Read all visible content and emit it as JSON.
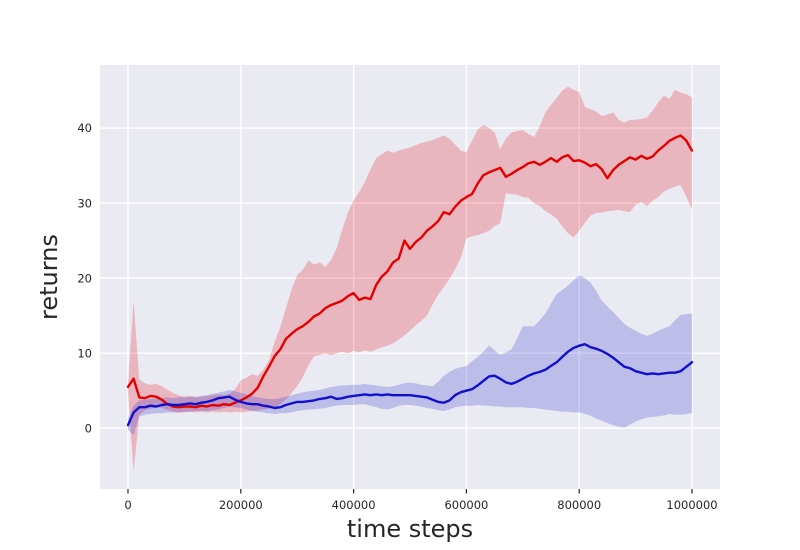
{
  "figure": {
    "background": "#ffffff"
  },
  "axes": {
    "xlabel": "time steps",
    "ylabel": "returns",
    "x_ticks": [
      0,
      200000,
      400000,
      600000,
      800000,
      1000000
    ],
    "x_tick_labels": [
      "0",
      "200000",
      "400000",
      "600000",
      "800000",
      "1000000"
    ],
    "y_ticks": [
      0,
      10,
      20,
      30,
      40
    ],
    "y_tick_labels": [
      "0",
      "10",
      "20",
      "30",
      "40"
    ],
    "xlim": [
      -49600,
      1049600
    ],
    "ylim": [
      -8.1,
      48.4
    ],
    "plot_background": "#eaeaf2",
    "grid_color": "#ffffff",
    "text_color": "#262626",
    "grid": "on",
    "legend": "none"
  },
  "chart_data": {
    "type": "line",
    "title": "",
    "xlabel": "time steps",
    "ylabel": "returns",
    "x": [
      0,
      10000,
      20000,
      30000,
      40000,
      50000,
      60000,
      70000,
      80000,
      90000,
      100000,
      110000,
      120000,
      130000,
      140000,
      150000,
      160000,
      170000,
      180000,
      190000,
      200000,
      210000,
      220000,
      230000,
      240000,
      250000,
      260000,
      270000,
      280000,
      290000,
      300000,
      310000,
      320000,
      330000,
      340000,
      350000,
      360000,
      370000,
      380000,
      390000,
      400000,
      410000,
      420000,
      430000,
      440000,
      450000,
      460000,
      470000,
      480000,
      490000,
      500000,
      510000,
      520000,
      530000,
      540000,
      550000,
      560000,
      570000,
      580000,
      590000,
      600000,
      610000,
      620000,
      630000,
      640000,
      650000,
      660000,
      670000,
      680000,
      690000,
      700000,
      710000,
      720000,
      730000,
      740000,
      750000,
      760000,
      770000,
      780000,
      790000,
      800000,
      810000,
      820000,
      830000,
      840000,
      850000,
      860000,
      870000,
      880000,
      890000,
      900000,
      910000,
      920000,
      930000,
      940000,
      950000,
      960000,
      970000,
      980000,
      990000,
      1000000
    ],
    "series": [
      {
        "name": "red",
        "color": "#e50000",
        "band_color": "rgba(232,0,15,0.22)",
        "values": [
          5.5,
          6.6,
          4.1,
          4.0,
          4.3,
          4.2,
          3.8,
          3.2,
          2.9,
          2.8,
          2.9,
          2.9,
          2.8,
          3.0,
          2.9,
          3.1,
          3.0,
          3.2,
          3.1,
          3.4,
          3.7,
          4.1,
          4.6,
          5.4,
          6.9,
          8.2,
          9.6,
          10.5,
          11.9,
          12.6,
          13.2,
          13.6,
          14.2,
          14.9,
          15.3,
          16.0,
          16.4,
          16.7,
          17.0,
          17.6,
          18.0,
          17.1,
          17.4,
          17.2,
          19.1,
          20.2,
          20.9,
          22.1,
          22.6,
          25.0,
          23.9,
          24.8,
          25.4,
          26.3,
          26.9,
          27.6,
          28.8,
          28.5,
          29.5,
          30.3,
          30.8,
          31.2,
          32.6,
          33.7,
          34.1,
          34.4,
          34.7,
          33.5,
          33.9,
          34.4,
          34.8,
          35.3,
          35.5,
          35.1,
          35.5,
          36.0,
          35.5,
          36.1,
          36.4,
          35.6,
          35.7,
          35.4,
          34.9,
          35.2,
          34.5,
          33.3,
          34.4,
          35.1,
          35.6,
          36.1,
          35.8,
          36.3,
          35.9,
          36.2,
          37.0,
          37.6,
          38.3,
          38.7,
          39.0,
          38.3,
          37.0
        ],
        "band_upper": [
          6.0,
          17.0,
          6.5,
          6.0,
          5.8,
          5.9,
          5.6,
          5.1,
          4.7,
          4.4,
          4.2,
          4.3,
          4.1,
          4.2,
          4.3,
          4.4,
          4.5,
          4.4,
          4.6,
          5.2,
          6.4,
          6.7,
          7.2,
          7.0,
          7.8,
          9.1,
          11.5,
          13.5,
          16.0,
          18.5,
          20.4,
          21.1,
          22.4,
          21.8,
          22.1,
          21.5,
          22.4,
          24.0,
          26.5,
          28.8,
          30.4,
          31.5,
          32.8,
          34.5,
          36.0,
          36.5,
          37.0,
          36.7,
          37.0,
          37.2,
          37.4,
          37.7,
          38.0,
          38.2,
          38.4,
          38.7,
          39.0,
          38.6,
          37.8,
          37.0,
          36.8,
          38.3,
          39.8,
          40.4,
          40.0,
          39.4,
          37.2,
          38.6,
          39.4,
          39.6,
          39.7,
          39.2,
          38.8,
          40.2,
          42.1,
          43.1,
          44.0,
          45.0,
          45.5,
          45.1,
          44.8,
          42.8,
          42.5,
          42.2,
          41.6,
          41.8,
          42.1,
          41.1,
          40.7,
          41.1,
          41.1,
          41.2,
          41.4,
          42.3,
          43.4,
          44.3,
          43.9,
          45.1,
          44.7,
          44.5,
          44.1
        ],
        "band_lower": [
          4.8,
          -5.8,
          1.8,
          2.4,
          2.6,
          2.8,
          2.7,
          2.4,
          2.2,
          2.1,
          2.1,
          2.2,
          2.1,
          2.2,
          2.1,
          2.2,
          2.1,
          2.2,
          2.1,
          2.2,
          2.1,
          2.2,
          2.3,
          2.4,
          2.5,
          2.6,
          2.8,
          3.2,
          3.8,
          4.7,
          5.6,
          6.8,
          8.4,
          9.6,
          9.8,
          10.0,
          9.7,
          10.0,
          10.2,
          10.0,
          10.3,
          10.1,
          10.4,
          10.2,
          10.5,
          10.8,
          11.0,
          11.3,
          11.8,
          12.4,
          13.0,
          13.7,
          14.3,
          15.0,
          16.5,
          17.8,
          18.8,
          19.9,
          21.2,
          22.7,
          25.3,
          25.6,
          25.7,
          26.0,
          26.3,
          26.9,
          27.3,
          31.3,
          31.2,
          31.1,
          30.8,
          30.7,
          30.0,
          29.6,
          28.9,
          28.5,
          27.9,
          26.9,
          26.0,
          25.4,
          26.3,
          27.4,
          28.3,
          28.7,
          28.7,
          28.9,
          29.0,
          29.1,
          28.9,
          28.8,
          29.8,
          30.1,
          29.6,
          30.3,
          30.8,
          31.5,
          31.9,
          32.2,
          32.4,
          30.8,
          29.1
        ]
      },
      {
        "name": "blue",
        "color": "#1111cd",
        "band_color": "rgba(25,25,205,0.21)",
        "values": [
          0.4,
          2.1,
          2.8,
          2.8,
          3.0,
          2.9,
          3.1,
          3.2,
          3.1,
          3.1,
          3.2,
          3.3,
          3.2,
          3.4,
          3.5,
          3.7,
          4.0,
          4.1,
          4.2,
          3.8,
          3.5,
          3.3,
          3.2,
          3.2,
          3.0,
          2.9,
          2.7,
          2.8,
          3.1,
          3.3,
          3.5,
          3.5,
          3.6,
          3.7,
          3.9,
          4.0,
          4.2,
          3.9,
          4.0,
          4.2,
          4.3,
          4.4,
          4.5,
          4.4,
          4.5,
          4.4,
          4.5,
          4.4,
          4.4,
          4.4,
          4.4,
          4.3,
          4.2,
          4.1,
          3.8,
          3.5,
          3.4,
          3.7,
          4.4,
          4.8,
          5.0,
          5.2,
          5.7,
          6.3,
          6.9,
          7.0,
          6.6,
          6.1,
          5.9,
          6.2,
          6.6,
          7.0,
          7.3,
          7.5,
          7.8,
          8.3,
          8.8,
          9.5,
          10.2,
          10.7,
          11.0,
          11.2,
          10.8,
          10.6,
          10.3,
          9.9,
          9.4,
          8.8,
          8.2,
          8.0,
          7.6,
          7.4,
          7.2,
          7.3,
          7.2,
          7.3,
          7.4,
          7.4,
          7.6,
          8.2,
          8.8
        ],
        "band_upper": [
          1.3,
          3.0,
          3.7,
          3.8,
          3.9,
          4.0,
          4.0,
          4.1,
          4.0,
          4.1,
          4.1,
          4.2,
          4.2,
          4.3,
          4.4,
          4.6,
          4.7,
          4.9,
          5.1,
          4.9,
          4.7,
          4.5,
          4.3,
          4.1,
          4.0,
          3.9,
          3.9,
          4.0,
          4.2,
          4.4,
          4.6,
          4.8,
          4.9,
          5.0,
          5.1,
          5.3,
          5.5,
          5.6,
          5.7,
          5.7,
          5.8,
          5.8,
          5.9,
          5.8,
          5.7,
          5.6,
          5.5,
          5.6,
          5.8,
          6.0,
          6.1,
          6.0,
          5.8,
          5.7,
          5.6,
          6.2,
          7.0,
          7.5,
          7.9,
          8.1,
          8.3,
          8.9,
          9.5,
          10.2,
          11.0,
          10.4,
          9.8,
          10.1,
          10.5,
          12.0,
          13.6,
          13.6,
          13.6,
          14.4,
          15.3,
          16.6,
          17.9,
          18.4,
          19.0,
          19.7,
          20.4,
          20.0,
          19.4,
          18.3,
          17.0,
          16.2,
          15.5,
          14.7,
          13.9,
          13.4,
          13.0,
          12.6,
          12.3,
          12.6,
          13.0,
          13.3,
          13.6,
          14.4,
          15.1,
          15.2,
          15.3
        ],
        "band_lower": [
          -0.2,
          -0.9,
          1.6,
          1.8,
          1.9,
          2.0,
          2.0,
          2.1,
          2.1,
          2.1,
          2.2,
          2.2,
          2.3,
          2.3,
          2.3,
          2.4,
          2.5,
          2.7,
          2.9,
          2.8,
          2.7,
          2.5,
          2.3,
          2.2,
          2.1,
          2.0,
          1.9,
          2.0,
          2.0,
          2.1,
          2.3,
          2.4,
          2.5,
          2.5,
          2.6,
          2.7,
          2.9,
          3.0,
          3.1,
          3.1,
          3.1,
          3.2,
          3.2,
          3.0,
          2.8,
          2.6,
          2.5,
          2.7,
          3.0,
          3.1,
          3.1,
          3.0,
          2.9,
          2.7,
          2.6,
          2.4,
          2.3,
          2.5,
          2.8,
          2.9,
          3.0,
          3.0,
          3.1,
          3.0,
          3.0,
          2.9,
          2.9,
          2.8,
          2.8,
          2.8,
          2.8,
          2.7,
          2.7,
          2.6,
          2.5,
          2.4,
          2.3,
          2.2,
          2.2,
          2.1,
          2.1,
          1.9,
          1.7,
          1.3,
          1.0,
          0.7,
          0.4,
          0.2,
          0.1,
          0.5,
          0.9,
          1.2,
          1.4,
          1.5,
          1.6,
          1.7,
          1.9,
          1.8,
          1.8,
          1.9,
          2.0
        ]
      }
    ]
  }
}
